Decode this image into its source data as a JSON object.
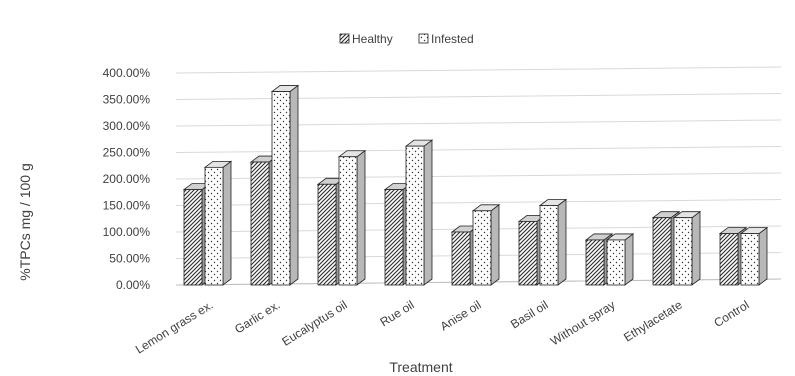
{
  "chart_data": {
    "type": "bar",
    "title": "",
    "xlabel": "Treatment",
    "ylabel": "%TPCs mg / 100 g",
    "categories": [
      "Lemon grass ex.",
      "Garlic ex.",
      "Eucalyptus oil",
      "Rue oil",
      "Anise oil",
      "Basil oil",
      "Without spray",
      "Ethylacetate",
      "Control"
    ],
    "series": [
      {
        "name": "Healthy",
        "values": [
          180,
          232,
          190,
          180,
          100,
          120,
          85,
          127,
          97
        ]
      },
      {
        "name": "Infested",
        "values": [
          222,
          365,
          242,
          262,
          140,
          150,
          85,
          127,
          97
        ]
      }
    ],
    "ylim": [
      0,
      400
    ],
    "yticks": [
      "0.00%",
      "50.00%",
      "100.00%",
      "150.00%",
      "200.00%",
      "250.00%",
      "300.00%",
      "350.00%",
      "400.00%"
    ],
    "grid": true,
    "legend_position": "top-center"
  }
}
